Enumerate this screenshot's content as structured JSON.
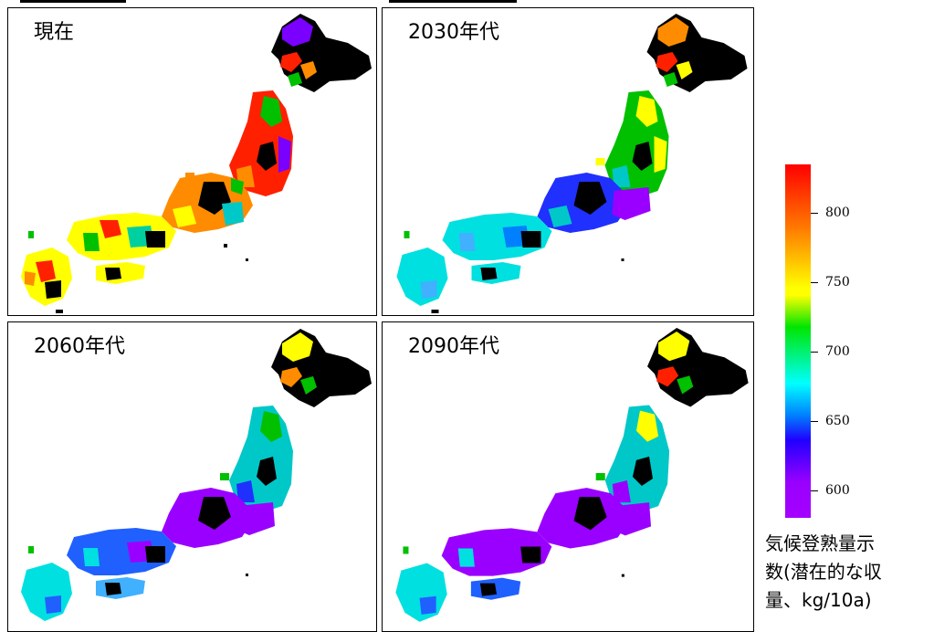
{
  "panels": [
    {
      "label": "現在",
      "theme": "present"
    },
    {
      "label": "2030年代",
      "theme": "y2030"
    },
    {
      "label": "2060年代",
      "theme": "y2060"
    },
    {
      "label": "2090年代",
      "theme": "y2090"
    }
  ],
  "legend": {
    "ticks": [
      "800",
      "750",
      "700",
      "650",
      "600"
    ],
    "tick_values": [
      800,
      750,
      700,
      650,
      600
    ],
    "title": "気候登熟量示数(潜在的な収量、kg/10a)",
    "title_lines": [
      "気候登熟量示",
      "数(潜在的な収",
      "量、kg/10a)"
    ],
    "range": [
      585,
      835
    ],
    "colors": [
      "#ff0000",
      "#ff7a00",
      "#ffff00",
      "#00e600",
      "#00ffff",
      "#0080ff",
      "#2000ff",
      "#9a00ff"
    ]
  }
}
